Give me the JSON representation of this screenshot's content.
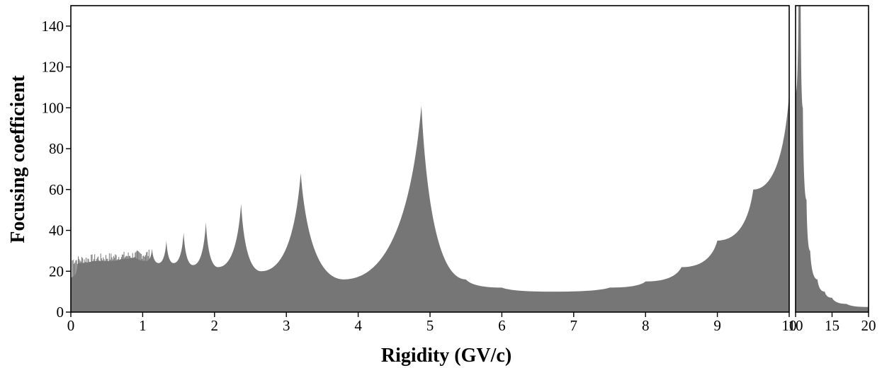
{
  "chart_data": {
    "type": "area",
    "xlabel": "Rigidity (GV/c)",
    "ylabel": "Focusing coefficient",
    "ylim": [
      0,
      150
    ],
    "yticks": [
      "0",
      "20",
      "40",
      "60",
      "80",
      "100",
      "120",
      "140"
    ],
    "grid": false,
    "fill_color": "#767676",
    "panels": [
      {
        "xlim": [
          0,
          10
        ],
        "xticks": [
          "0",
          "1",
          "2",
          "3",
          "4",
          "5",
          "6",
          "7",
          "8",
          "9",
          "10"
        ],
        "peaks": [
          {
            "x": 1.13,
            "y": 31
          },
          {
            "x": 1.33,
            "y": 35
          },
          {
            "x": 1.57,
            "y": 39
          },
          {
            "x": 1.88,
            "y": 44
          },
          {
            "x": 2.37,
            "y": 53
          },
          {
            "x": 3.2,
            "y": 68
          },
          {
            "x": 4.88,
            "y": 101
          }
        ],
        "points": [
          {
            "x": 0.0,
            "y": 17
          },
          {
            "x": 0.1,
            "y": 24
          },
          {
            "x": 0.3,
            "y": 25
          },
          {
            "x": 0.5,
            "y": 25
          },
          {
            "x": 0.7,
            "y": 26
          },
          {
            "x": 0.9,
            "y": 27
          },
          {
            "x": 1.05,
            "y": 25
          },
          {
            "x": 1.13,
            "y": 31
          },
          {
            "x": 1.22,
            "y": 24
          },
          {
            "x": 1.33,
            "y": 35
          },
          {
            "x": 1.43,
            "y": 24
          },
          {
            "x": 1.57,
            "y": 39
          },
          {
            "x": 1.7,
            "y": 23
          },
          {
            "x": 1.88,
            "y": 44
          },
          {
            "x": 2.05,
            "y": 22
          },
          {
            "x": 2.37,
            "y": 53
          },
          {
            "x": 2.65,
            "y": 20
          },
          {
            "x": 3.2,
            "y": 68
          },
          {
            "x": 3.8,
            "y": 16
          },
          {
            "x": 4.88,
            "y": 101
          },
          {
            "x": 5.5,
            "y": 16
          },
          {
            "x": 6.0,
            "y": 12
          },
          {
            "x": 6.7,
            "y": 10
          },
          {
            "x": 7.5,
            "y": 12
          },
          {
            "x": 8.0,
            "y": 15
          },
          {
            "x": 8.5,
            "y": 22
          },
          {
            "x": 9.0,
            "y": 35
          },
          {
            "x": 9.5,
            "y": 60
          },
          {
            "x": 10.0,
            "y": 107
          }
        ]
      },
      {
        "xlim": [
          10,
          20
        ],
        "xticks": [
          "10",
          "15",
          "20"
        ],
        "points": [
          {
            "x": 10.0,
            "y": 107
          },
          {
            "x": 10.4,
            "y": 150
          },
          {
            "x": 10.7,
            "y": 150
          },
          {
            "x": 11.0,
            "y": 100
          },
          {
            "x": 11.5,
            "y": 55
          },
          {
            "x": 12.0,
            "y": 30
          },
          {
            "x": 13.0,
            "y": 16
          },
          {
            "x": 14.0,
            "y": 10
          },
          {
            "x": 15.0,
            "y": 7
          },
          {
            "x": 17.0,
            "y": 4
          },
          {
            "x": 20.0,
            "y": 2.5
          }
        ]
      }
    ]
  }
}
